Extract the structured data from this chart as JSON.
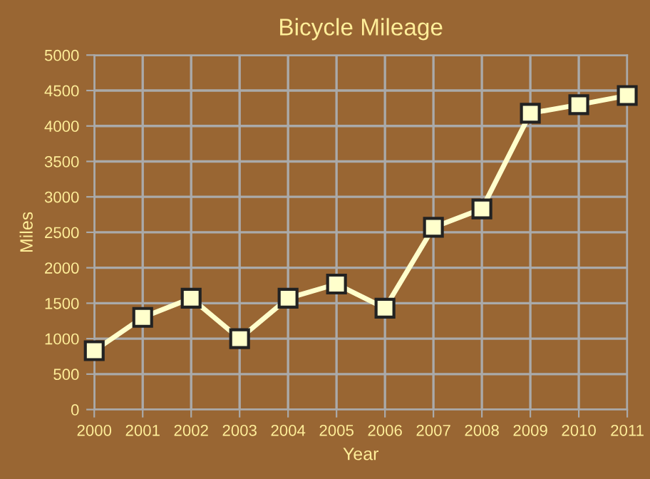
{
  "chart_data": {
    "type": "line",
    "title": "Bicycle Mileage",
    "xlabel": "Year",
    "ylabel": "Miles",
    "x": [
      2000,
      2001,
      2002,
      2003,
      2004,
      2005,
      2006,
      2007,
      2008,
      2009,
      2010,
      2011
    ],
    "series": [
      {
        "color": "#ffffcc",
        "values": [
          830,
          1300,
          1570,
          1000,
          1570,
          1770,
          1430,
          2570,
          2830,
          4180,
          4300,
          4430
        ]
      }
    ],
    "xlim": [
      2000,
      2011
    ],
    "xticks": [
      2000,
      2001,
      2002,
      2003,
      2004,
      2005,
      2006,
      2007,
      2008,
      2009,
      2010,
      2011
    ],
    "ylim": [
      0,
      5000
    ],
    "yticks": [
      0,
      500,
      1000,
      1500,
      2000,
      2500,
      3000,
      3500,
      4000,
      4500,
      5000
    ],
    "grid": true,
    "marker": "square",
    "line_style": "solid",
    "legend": false
  }
}
